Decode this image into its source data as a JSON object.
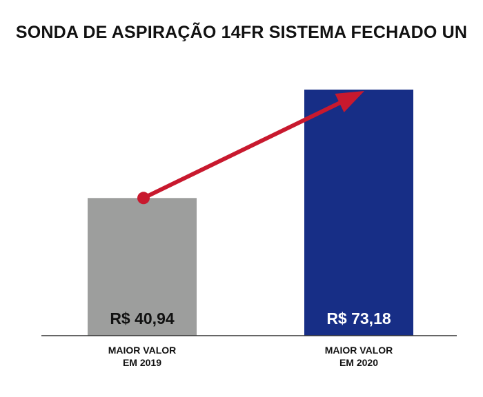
{
  "title": "SONDA DE ASPIRAÇÃO 14FR SISTEMA FECHADO UN",
  "colors": {
    "bar_2019": "#9d9e9d",
    "bar_2020": "#172e86",
    "arrow": "#c8192e",
    "axis": "#333333",
    "value_2019_text": "#111111",
    "value_2020_text": "#ffffff"
  },
  "chart_data": {
    "type": "bar",
    "title": "SONDA DE ASPIRAÇÃO 14FR SISTEMA FECHADO UN",
    "categories": [
      [
        "MAIOR VALOR",
        "EM 2019"
      ],
      [
        "MAIOR VALOR",
        "EM 2020"
      ]
    ],
    "values": [
      40.94,
      73.18
    ],
    "value_labels": [
      "R$ 40,94",
      "R$ 73,18"
    ],
    "ylim": [
      0,
      73.18
    ],
    "grid": false,
    "annotation": "arrow from top of first bar to top of second bar"
  }
}
